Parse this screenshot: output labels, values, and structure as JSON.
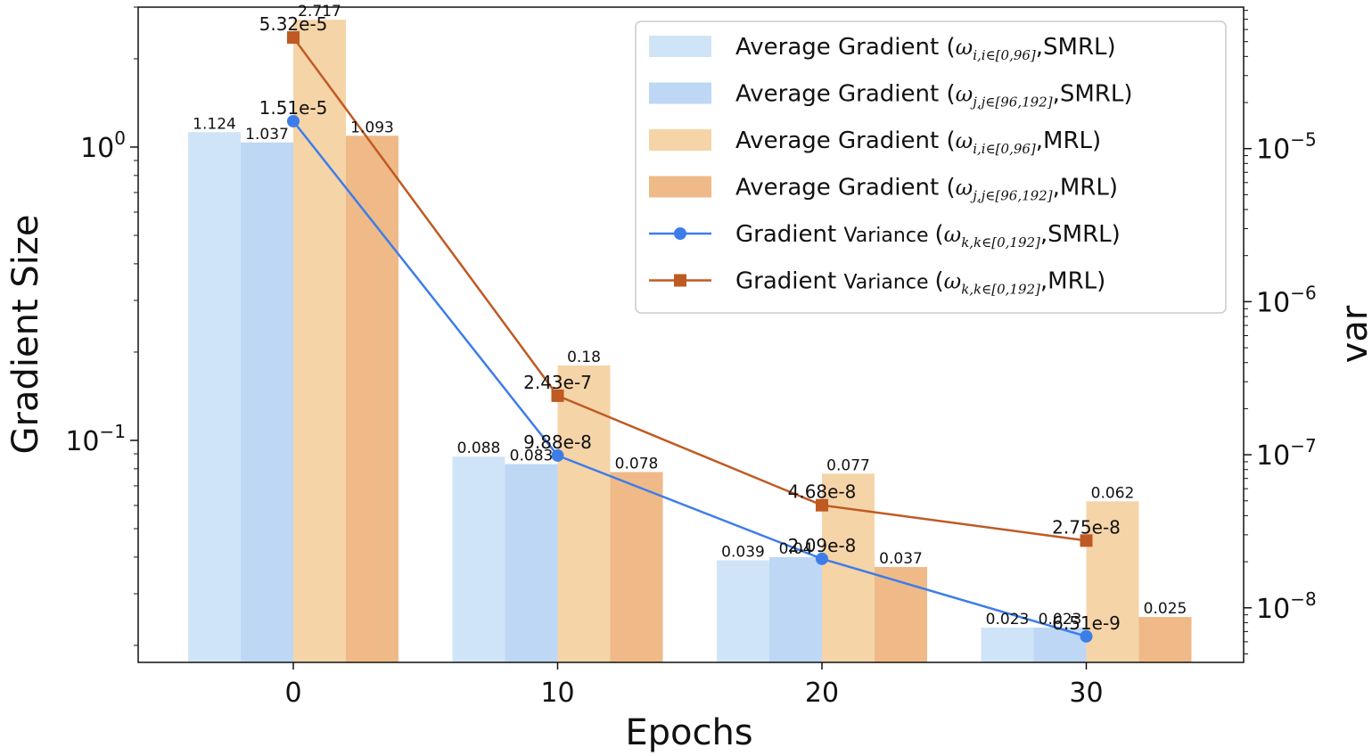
{
  "chart_data": {
    "type": "bar+line",
    "xlabel": "Epochs",
    "ylabel": "Gradient Size",
    "y2label": "var",
    "yscale": "log",
    "y2scale": "log",
    "ylim": [
      0.0175,
      3.0
    ],
    "y2lim": [
      4.4e-09,
      8.4e-05
    ],
    "categories": [
      "0",
      "10",
      "20",
      "30"
    ],
    "y_ticks": [
      {
        "value": 1,
        "label": "10",
        "exp": "0"
      },
      {
        "value": 0.1,
        "label": "10",
        "exp": "−1"
      }
    ],
    "y2_ticks": [
      {
        "value": 1e-05,
        "label": "10",
        "exp": "−5"
      },
      {
        "value": 1e-06,
        "label": "10",
        "exp": "−6"
      },
      {
        "value": 1e-07,
        "label": "10",
        "exp": "−7"
      },
      {
        "value": 1e-08,
        "label": "10",
        "exp": "−8"
      }
    ],
    "bar_series": [
      {
        "name": "Average Gradient",
        "w_sym": "ω",
        "w_sub": "i,i∈[0,96]",
        "method": ",SMRL)",
        "color": "#d0e4f7",
        "values": [
          1.124,
          0.088,
          0.039,
          0.023
        ],
        "labels": [
          "1.124",
          "0.088",
          "0.039",
          "0.023"
        ]
      },
      {
        "name": "Average Gradient",
        "w_sym": "ω",
        "w_sub": "j,j∈[96,192]",
        "method": ",SMRL)",
        "color": "#bdd7f5",
        "values": [
          1.037,
          0.083,
          0.04,
          0.023
        ],
        "labels": [
          "1.037",
          "0.083",
          "0.04",
          "0.023"
        ]
      },
      {
        "name": "Average Gradient",
        "w_sym": "ω",
        "w_sub": "i,i∈[0,96]",
        "method": ",MRL)",
        "color": "#f5d4a8",
        "values": [
          2.717,
          0.18,
          0.077,
          0.062
        ],
        "labels": [
          "2.717",
          "0.18",
          "0.077",
          "0.062"
        ]
      },
      {
        "name": "Average Gradient",
        "w_sym": "ω",
        "w_sub": "j,j∈[96,192]",
        "method": ",MRL)",
        "color": "#efba88",
        "values": [
          1.093,
          0.078,
          0.037,
          0.025
        ],
        "labels": [
          "1.093",
          "0.078",
          "0.037",
          "0.025"
        ]
      }
    ],
    "line_series": [
      {
        "name": "Gradient",
        "name2": "Variance",
        "w_sym": "ω",
        "w_sub": "k,k∈[0,192]",
        "method": ",SMRL)",
        "color": "#3d7de8",
        "marker": "circle",
        "values": [
          1.51e-05,
          9.88e-08,
          2.09e-08,
          6.51e-09
        ],
        "labels": [
          "1.51e-5",
          "9.88e-8",
          "2.09e-8",
          "6.51e-9"
        ]
      },
      {
        "name": "Gradient",
        "name2": "Variance",
        "w_sym": "ω",
        "w_sub": "k,k∈[0,192]",
        "method": ",MRL)",
        "color": "#bf5a22",
        "marker": "square",
        "values": [
          5.32e-05,
          2.43e-07,
          4.68e-08,
          2.75e-08
        ],
        "labels": [
          "5.32e-5",
          "2.43e-7",
          "4.68e-8",
          "2.75e-8"
        ]
      }
    ],
    "legend_position": "top-right"
  }
}
